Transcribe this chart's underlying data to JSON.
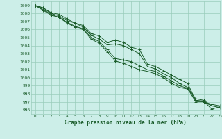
{
  "xlabel": "Graphe pression niveau de la mer (hPa)",
  "bg_color": "#cceee8",
  "grid_color": "#99ccbb",
  "line_color": "#1a5c2a",
  "xlim": [
    -0.5,
    23
  ],
  "ylim": [
    995.5,
    1009.5
  ],
  "xticks": [
    0,
    1,
    2,
    3,
    4,
    5,
    6,
    7,
    8,
    9,
    10,
    11,
    12,
    13,
    14,
    15,
    16,
    17,
    18,
    19,
    20,
    21,
    22,
    23
  ],
  "yticks": [
    996,
    997,
    998,
    999,
    1000,
    1001,
    1002,
    1003,
    1004,
    1005,
    1006,
    1007,
    1008,
    1009
  ],
  "series": [
    [
      1009.0,
      1008.7,
      1008.1,
      1007.9,
      1007.3,
      1006.8,
      1006.5,
      1005.5,
      1005.2,
      1004.4,
      1004.7,
      1004.4,
      1003.8,
      1003.5,
      1001.7,
      1001.4,
      1000.9,
      1000.3,
      999.8,
      999.3,
      997.2,
      997.1,
      996.1,
      996.4
    ],
    [
      1009.0,
      1008.7,
      1008.0,
      1007.7,
      1007.1,
      1006.8,
      1006.3,
      1005.3,
      1004.8,
      1004.1,
      1004.2,
      1004.0,
      1003.5,
      1003.0,
      1001.4,
      1001.1,
      1000.5,
      1000.0,
      999.3,
      998.8,
      997.4,
      997.2,
      996.5,
      996.5
    ],
    [
      1009.0,
      1008.5,
      1007.9,
      1007.5,
      1006.9,
      1006.4,
      1006.1,
      1005.0,
      1004.5,
      1003.5,
      1002.4,
      1002.2,
      1002.0,
      1001.5,
      1001.0,
      1000.8,
      1000.2,
      999.6,
      999.0,
      998.7,
      997.0,
      997.0,
      996.7,
      996.5
    ],
    [
      1009.0,
      1008.4,
      1007.8,
      1007.5,
      1006.8,
      1006.3,
      1006.0,
      1004.8,
      1004.3,
      1003.2,
      1002.1,
      1001.8,
      1001.4,
      1001.0,
      1000.8,
      1000.5,
      1000.0,
      999.3,
      998.8,
      998.6,
      997.2,
      997.0,
      996.5,
      996.3
    ]
  ]
}
